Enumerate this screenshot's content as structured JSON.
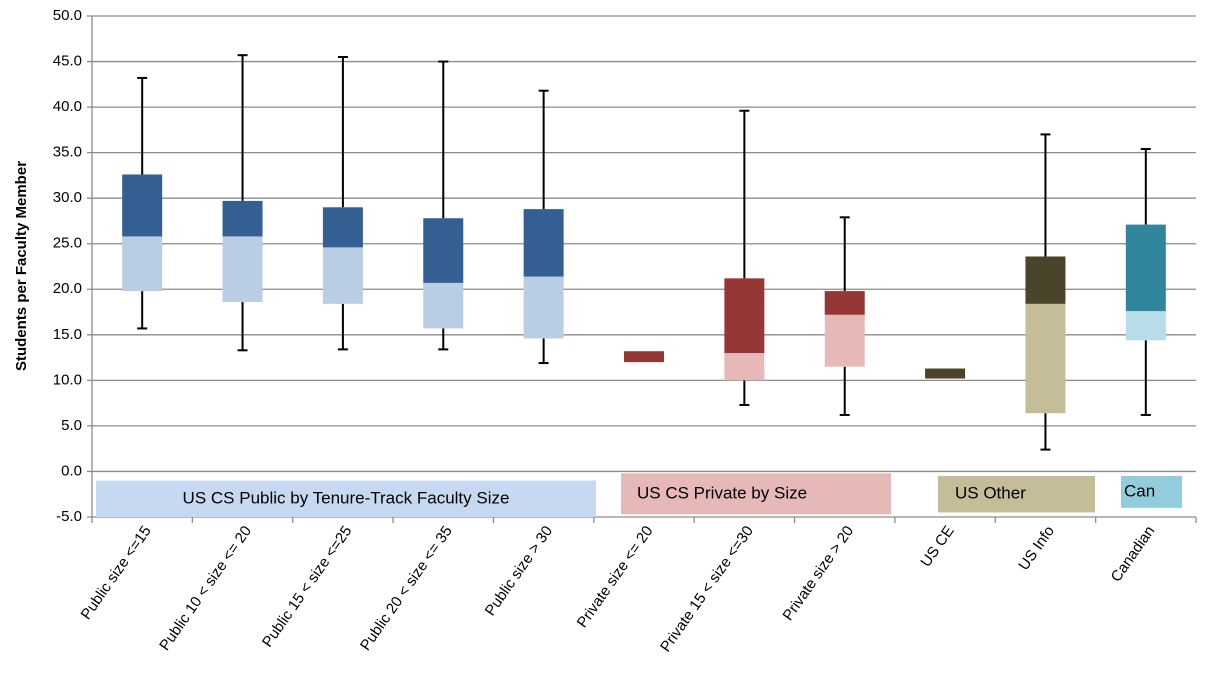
{
  "chart_data": {
    "type": "box",
    "y_label": "Students per Faculty Member",
    "categories": [
      "Public size <=15",
      "Public 10 < size <= 20",
      "Public 15 < size <=25",
      "Public 20 < size <= 35",
      "Public size > 30",
      "Private size <= 20",
      "Private 15 < size <=30",
      "Private size > 20",
      "US CE",
      "US Info",
      "Canadian"
    ],
    "min": [
      15.7,
      13.3,
      13.4,
      13.4,
      11.9,
      null,
      7.3,
      6.2,
      null,
      2.4,
      6.2
    ],
    "q1": [
      19.8,
      18.6,
      18.4,
      15.7,
      14.6,
      12.0,
      10.0,
      11.5,
      10.2,
      6.4,
      14.4
    ],
    "median": [
      25.8,
      25.8,
      24.6,
      20.7,
      21.4,
      12.0,
      13.0,
      17.2,
      10.2,
      18.4,
      17.6
    ],
    "q3": [
      32.6,
      29.7,
      29.0,
      27.8,
      28.8,
      13.2,
      21.2,
      19.8,
      11.3,
      23.6,
      27.1
    ],
    "max": [
      43.2,
      45.7,
      45.5,
      45.0,
      41.8,
      null,
      39.6,
      27.9,
      null,
      37.0,
      35.4
    ],
    "light_colors": [
      "#b9cde5",
      "#b9cde5",
      "#b9cde5",
      "#b9cde5",
      "#b9cde5",
      "#e6b9b8",
      "#e6b9b8",
      "#e6b9b8",
      "#c4bd97",
      "#c4bd97",
      "#b7dee8"
    ],
    "dark_colors": [
      "#335f93",
      "#335f93",
      "#335f93",
      "#335f93",
      "#335f93",
      "#953735",
      "#953735",
      "#953735",
      "#4a452a",
      "#4a452a",
      "#31859c"
    ],
    "groups": [
      {
        "label": "US CS Public by Tenure-Track Faculty Size",
        "color": "#c6d9f1"
      },
      {
        "label": "US CS Private by Size",
        "color": "#e6b9b8"
      },
      {
        "label": "US Other",
        "color": "#c4bd97"
      },
      {
        "label": "Can",
        "color": "#93cddd"
      }
    ],
    "ylim": [
      -5,
      50
    ],
    "yticks": [
      {
        "value": -5,
        "label": "-5.0"
      },
      {
        "value": 0,
        "label": "0.0"
      },
      {
        "value": 5,
        "label": "5.0"
      },
      {
        "value": 10,
        "label": "10.0"
      },
      {
        "value": 15,
        "label": "15.0"
      },
      {
        "value": 20,
        "label": "20.0"
      },
      {
        "value": 25,
        "label": "25.0"
      },
      {
        "value": 30,
        "label": "30.0"
      },
      {
        "value": 35,
        "label": "35.0"
      },
      {
        "value": 40,
        "label": "40.0"
      },
      {
        "value": 45,
        "label": "45.0"
      },
      {
        "value": 50,
        "label": "50.0"
      }
    ],
    "grid": true
  }
}
